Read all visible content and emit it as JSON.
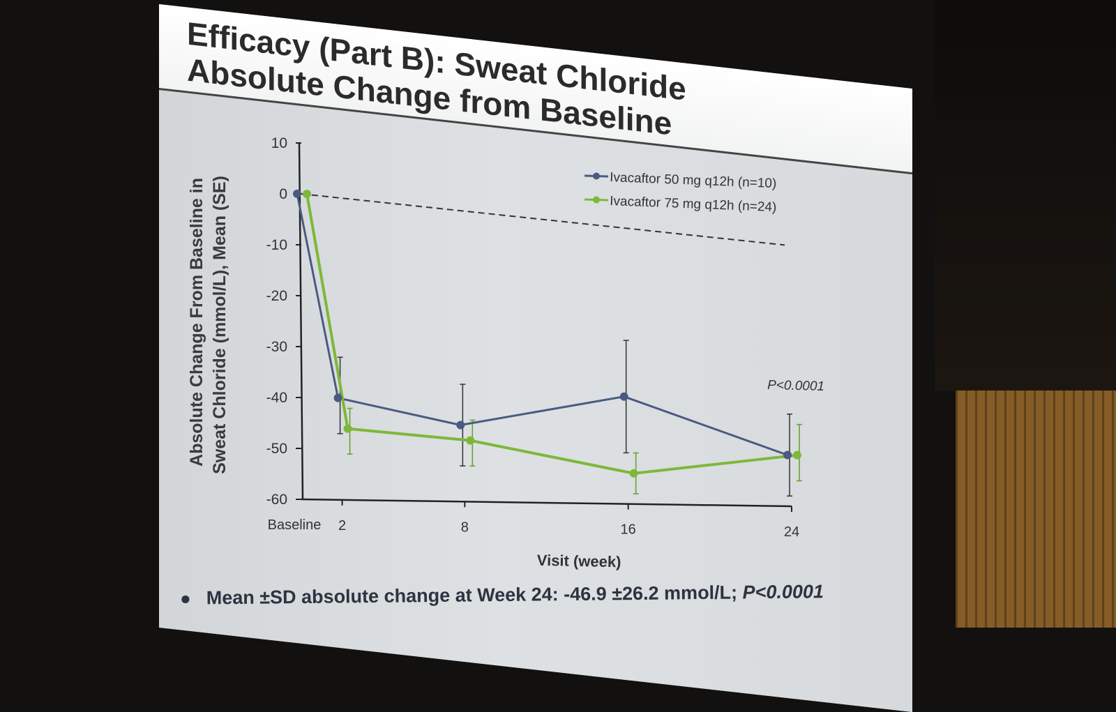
{
  "slide": {
    "title_line1": "Efficacy (Part B): Sweat Chloride",
    "title_line2": "Absolute Change from Baseline",
    "bullet_text": "Mean ±SD absolute change at Week 24: -46.9 ±26.2 mmol/L; ",
    "bullet_p_value": "P<0.0001"
  },
  "chart_data": {
    "type": "line",
    "title": "",
    "xlabel": "Visit (week)",
    "ylabel_line1": "Absolute Change From Baseline in",
    "ylabel_line2": "Sweat Chloride (mmol/L), Mean (SE)",
    "ylim": [
      -60,
      10
    ],
    "yticks": [
      10,
      0,
      -10,
      -20,
      -30,
      -40,
      -50,
      -60
    ],
    "ytick_labels": [
      "10",
      "0",
      "-10",
      "-20",
      "-30",
      "-40",
      "-50",
      "-60"
    ],
    "x": [
      0,
      2,
      8,
      16,
      24
    ],
    "xtick_labels": [
      "Baseline",
      "2",
      "8",
      "16",
      "24"
    ],
    "grid": false,
    "legend_placement": "top-right",
    "reference_line": {
      "y_start": 0,
      "y_end": -9,
      "style": "dashed"
    },
    "annotation": "P<0.0001",
    "series": [
      {
        "name": "Ivacaftor 50 mg q12h (n=10)",
        "color": "#4a5a82",
        "values": [
          0,
          -40,
          -45,
          -39,
          -50
        ],
        "err_low": [
          0,
          -47,
          -53,
          -50,
          -58
        ],
        "err_high": [
          0,
          -32,
          -37,
          -28,
          -42
        ]
      },
      {
        "name": "Ivacaftor 75 mg q12h (n=24)",
        "color": "#7cb83a",
        "values": [
          0,
          -46,
          -48,
          -54,
          -50
        ],
        "err_low": [
          0,
          -51,
          -53,
          -58,
          -55
        ],
        "err_high": [
          0,
          -42,
          -44,
          -50,
          -44
        ]
      }
    ]
  }
}
